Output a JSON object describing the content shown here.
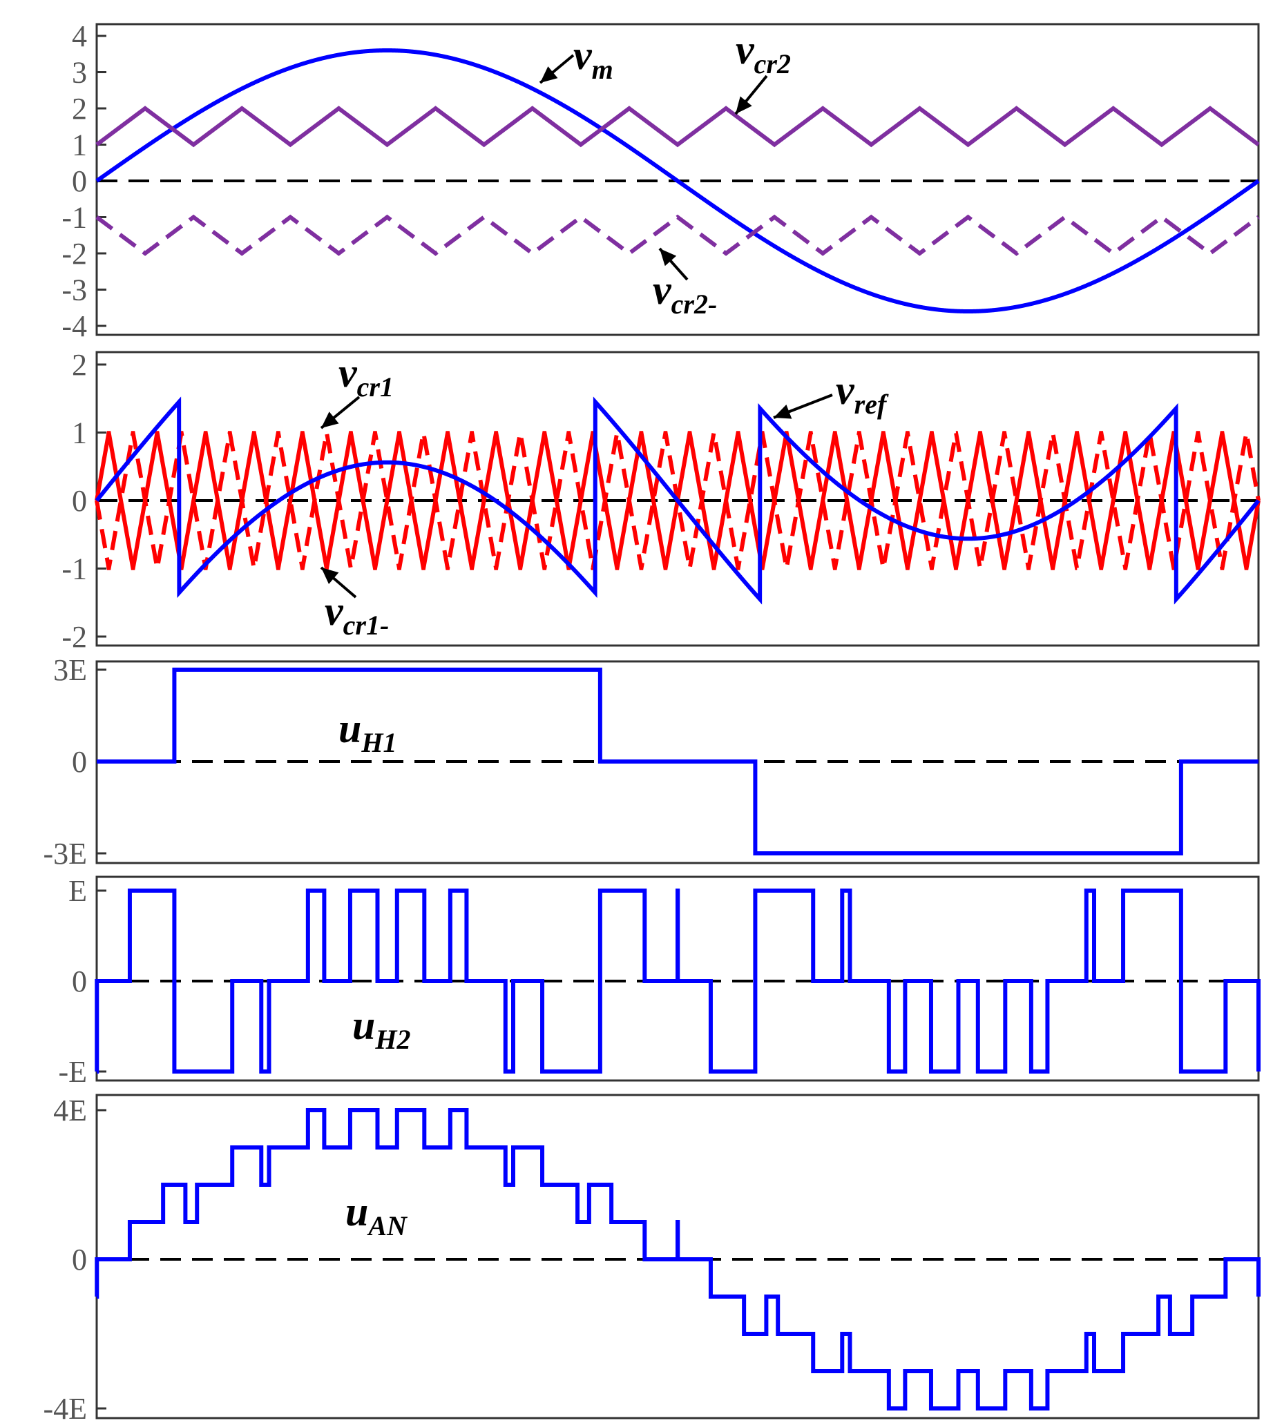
{
  "chart_data": [
    {
      "type": "line",
      "ylim": [
        -4,
        4
      ],
      "yticks": [
        "4",
        "3",
        "2",
        "1",
        "0",
        "-1",
        "-2",
        "-3",
        "-4"
      ],
      "ytick_values": [
        4,
        3,
        2,
        1,
        0,
        -1,
        -2,
        -3,
        -4
      ],
      "xlim": [
        0,
        1
      ],
      "zero_line": "dashed",
      "series": [
        {
          "key": "vm",
          "label_main": "v",
          "label_sub": "m",
          "color": "#0000ff",
          "style": "solid",
          "shape": "sine",
          "amplitude": 3.6,
          "periods": 1
        },
        {
          "key": "vcr2",
          "label_main": "v",
          "label_sub": "cr2",
          "color": "#7f2fa0",
          "style": "solid",
          "shape": "triangle",
          "min": 1,
          "max": 2,
          "periods": 12,
          "phase": "low-start"
        },
        {
          "key": "vcr2m",
          "label_main": "v",
          "label_sub": "cr2-",
          "color": "#7f2fa0",
          "style": "dashed",
          "shape": "triangle",
          "min": -2,
          "max": -1,
          "periods": 12,
          "phase": "high-start"
        }
      ]
    },
    {
      "type": "line",
      "ylim": [
        -2,
        2
      ],
      "yticks": [
        "2",
        "1",
        "0",
        "-1",
        "-2"
      ],
      "ytick_values": [
        2,
        1,
        0,
        -1,
        -2
      ],
      "xlim": [
        0,
        1
      ],
      "zero_line": "dashed",
      "series": [
        {
          "key": "vcr1",
          "label_main": "v",
          "label_sub": "cr1",
          "color": "#ff0000",
          "style": "solid",
          "shape": "triangle",
          "min": -1,
          "max": 1,
          "periods": 24,
          "phase": "zero-rise"
        },
        {
          "key": "vcr1m",
          "label_main": "v",
          "label_sub": "cr1-",
          "color": "#ff0000",
          "style": "dashed",
          "shape": "triangle",
          "min": -1,
          "max": 1,
          "periods": 24,
          "phase": "zero-fall"
        },
        {
          "key": "vref",
          "label_main": "v",
          "label_sub": "ref",
          "color": "#0000ff",
          "style": "solid",
          "shape": "vm minus staircase",
          "steps": [
            -3,
            -1,
            1,
            3
          ],
          "step_size": 2
        }
      ]
    },
    {
      "type": "line",
      "ylim": [
        -3,
        3
      ],
      "yticks": [
        "3E",
        "0",
        "-3E"
      ],
      "ytick_values": [
        3,
        0,
        -3
      ],
      "xlim": [
        0,
        1
      ],
      "zero_line": "dashed",
      "label_main": "u",
      "label_sub": "H1",
      "series": [
        {
          "key": "uH1",
          "color": "#0000ff",
          "style": "solid",
          "shape": "step",
          "points": [
            [
              0,
              0
            ],
            [
              0.0667,
              3
            ],
            [
              0.4333,
              0
            ],
            [
              0.5667,
              -3
            ],
            [
              0.9333,
              0
            ],
            [
              1,
              0
            ]
          ]
        }
      ]
    },
    {
      "type": "line",
      "ylim": [
        -1,
        1
      ],
      "yticks": [
        "E",
        "0",
        "-E"
      ],
      "ytick_values": [
        1,
        0,
        -1
      ],
      "xlim": [
        0,
        1
      ],
      "zero_line": "dashed",
      "label_main": "u",
      "label_sub": "H2",
      "series": [
        {
          "key": "uH2",
          "color": "#0000ff",
          "style": "solid",
          "shape": "step, u_AN minus u_H1"
        }
      ]
    },
    {
      "type": "line",
      "ylim": [
        -4,
        4
      ],
      "yticks": [
        "4E",
        "0",
        "-4E"
      ],
      "ytick_values": [
        4,
        0,
        -4
      ],
      "xlim": [
        0,
        1
      ],
      "zero_line": "dashed",
      "label_main": "u",
      "label_sub": "AN",
      "series": [
        {
          "key": "uAN",
          "color": "#0000ff",
          "style": "solid",
          "shape": "step, 9-level PWM of v_m against shifted carriers",
          "levels": [
            -4,
            -3,
            -2,
            -1,
            0,
            1,
            2,
            3,
            4
          ]
        }
      ]
    }
  ]
}
